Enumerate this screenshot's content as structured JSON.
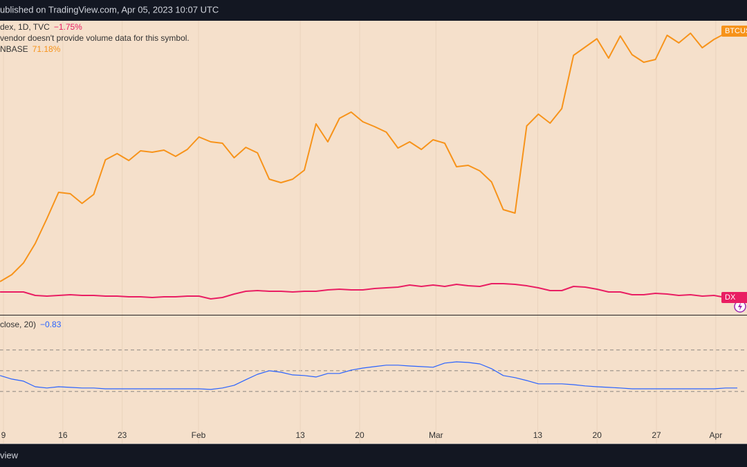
{
  "header": "ublished on TradingView.com, Apr 05, 2023 10:07 UTC",
  "footer": "view",
  "chart_data": [
    {
      "type": "line",
      "legend": [
        {
          "text": "dex, 1D, TVC",
          "value": "−1.75%",
          "color": "#e91e63"
        },
        {
          "text": "vendor doesn't provide volume data for this symbol."
        },
        {
          "text": "NBASE",
          "value": "71.18%",
          "color": "#f7931a"
        }
      ],
      "xlim": [
        -0.41,
        87.68
      ],
      "ylim": [
        0,
        455
      ],
      "x": [
        -0.4,
        0.98,
        2.36,
        3.74,
        5.12,
        6.5,
        7.88,
        9.26,
        10.64,
        12.02,
        13.4,
        14.78,
        16.16,
        17.54,
        18.92,
        20.3,
        21.68,
        23.06,
        24.44,
        25.82,
        27.2,
        28.58,
        29.96,
        31.34,
        32.72,
        34.1,
        35.48,
        36.86,
        38.24,
        39.62,
        41,
        42.38,
        43.76,
        45.14,
        46.52,
        47.9,
        49.28,
        50.66,
        52.04,
        53.42,
        54.8,
        56.18,
        57.56,
        58.94,
        60.32,
        61.7,
        63.08,
        64.46,
        65.84,
        67.22,
        68.6,
        69.98,
        71.36,
        72.74,
        74.12,
        75.5,
        76.88,
        78.26,
        79.64,
        81.02,
        82.4,
        83.78,
        85.16,
        86.54
      ],
      "series": [
        {
          "name": "BTCUS",
          "color": "#f7931a",
          "values": [
            48,
            58,
            75,
            103,
            139,
            177,
            175,
            161,
            174,
            224,
            233,
            223,
            237,
            235,
            238,
            229,
            239,
            257,
            250,
            248,
            227,
            242,
            234,
            196,
            191,
            196,
            209,
            276,
            250,
            284,
            293,
            279,
            272,
            264,
            241,
            250,
            239,
            253,
            248,
            214,
            216,
            208,
            192,
            152,
            147,
            273,
            290,
            277,
            298,
            375,
            387,
            399,
            371,
            403,
            376,
            365,
            369,
            404,
            393,
            407,
            386,
            398,
            407,
            410
          ]
        },
        {
          "name": "DX",
          "color": "#e91e63",
          "values": [
            33,
            33,
            33,
            28,
            27,
            28,
            29,
            28,
            28,
            27,
            27,
            26,
            26,
            25,
            26,
            26,
            27,
            27,
            23,
            25,
            30,
            34,
            35,
            34,
            34,
            33,
            34,
            34,
            36,
            37,
            36,
            36,
            38,
            39,
            40,
            43,
            41,
            43,
            41,
            44,
            42,
            41,
            45,
            45,
            44,
            42,
            39,
            35,
            35,
            41,
            40,
            37,
            33,
            33,
            29,
            29,
            31,
            30,
            28,
            29,
            27,
            28,
            25,
            25
          ]
        }
      ]
    },
    {
      "type": "line",
      "title": "close, 20)",
      "legend_value": "−0.83",
      "xlim": [
        -0.41,
        87.68
      ],
      "ylim": [
        -3.47,
        2.63
      ],
      "yticks": [
        -1,
        0,
        1
      ],
      "xticks": [
        {
          "value": 0,
          "label": "9"
        },
        {
          "value": 7,
          "label": "16"
        },
        {
          "value": 14,
          "label": "23"
        },
        {
          "value": 23,
          "label": "Feb"
        },
        {
          "value": 35,
          "label": "13"
        },
        {
          "value": 42,
          "label": "20"
        },
        {
          "value": 51,
          "label": "Mar"
        },
        {
          "value": 63,
          "label": "13"
        },
        {
          "value": 70,
          "label": "20"
        },
        {
          "value": 77,
          "label": "27"
        },
        {
          "value": 84,
          "label": "Apr"
        }
      ],
      "x": [
        -0.4,
        0.98,
        2.36,
        3.74,
        5.12,
        6.5,
        7.88,
        9.26,
        10.64,
        12.02,
        13.4,
        14.78,
        16.16,
        17.54,
        18.92,
        20.3,
        21.68,
        23.06,
        24.44,
        25.82,
        27.2,
        28.58,
        29.96,
        31.34,
        32.72,
        34.1,
        35.48,
        36.86,
        38.24,
        39.62,
        41,
        42.38,
        43.76,
        45.14,
        46.52,
        47.9,
        49.28,
        50.66,
        52.04,
        53.42,
        54.8,
        56.18,
        57.56,
        58.94,
        60.32,
        61.7,
        63.08,
        64.46,
        65.84,
        67.22,
        68.6,
        69.98,
        71.36,
        72.74,
        74.12,
        75.5,
        76.88,
        78.26,
        79.64,
        81.02,
        82.4,
        83.78,
        85.16,
        86.54
      ],
      "series": [
        {
          "color": "#2962ff",
          "values": [
            -0.23,
            -0.4,
            -0.5,
            -0.77,
            -0.83,
            -0.77,
            -0.8,
            -0.83,
            -0.83,
            -0.87,
            -0.87,
            -0.87,
            -0.87,
            -0.87,
            -0.87,
            -0.87,
            -0.87,
            -0.87,
            -0.9,
            -0.83,
            -0.7,
            -0.43,
            -0.17,
            0,
            -0.07,
            -0.2,
            -0.23,
            -0.3,
            -0.13,
            -0.13,
            0.03,
            0.13,
            0.2,
            0.27,
            0.27,
            0.23,
            0.2,
            0.17,
            0.37,
            0.43,
            0.4,
            0.33,
            0.1,
            -0.23,
            -0.33,
            -0.47,
            -0.63,
            -0.63,
            -0.63,
            -0.67,
            -0.73,
            -0.77,
            -0.8,
            -0.83,
            -0.87,
            -0.87,
            -0.87,
            -0.87,
            -0.87,
            -0.87,
            -0.87,
            -0.87,
            -0.83,
            -0.83
          ]
        }
      ]
    }
  ]
}
